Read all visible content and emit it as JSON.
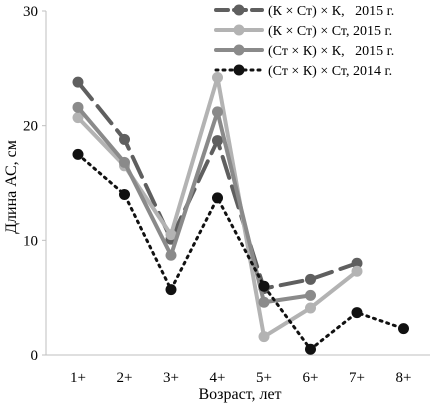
{
  "chart_data": {
    "type": "line",
    "xlabel": "Возраст, лет",
    "ylabel": "Длина АС, см",
    "categories": [
      "1+",
      "2+",
      "3+",
      "4+",
      "5+",
      "6+",
      "7+",
      "8+"
    ],
    "yticks": [
      "0",
      "10",
      "20",
      "30"
    ],
    "ylim": [
      0,
      30
    ],
    "grid": false,
    "legend_position": "top-right",
    "series": [
      {
        "name": "(К × Ст) × К,   2015 г.",
        "values": [
          23.8,
          18.8,
          10.1,
          18.7,
          5.8,
          6.6,
          8.0,
          null
        ],
        "color": "#5f5f5f",
        "dash": "long-dash"
      },
      {
        "name": "(К × Ст) × Ст, 2015 г.",
        "values": [
          20.7,
          16.5,
          10.5,
          24.2,
          1.6,
          4.1,
          7.3,
          null
        ],
        "color": "#b3b3b3",
        "dash": "solid"
      },
      {
        "name": "(Ст × К) × К,   2015 г.",
        "values": [
          21.6,
          16.8,
          8.7,
          21.2,
          4.6,
          5.2,
          null,
          null
        ],
        "color": "#8a8a8a",
        "dash": "solid"
      },
      {
        "name": "(Ст × К) × Ст, 2014 г.",
        "values": [
          17.5,
          14.0,
          5.7,
          13.7,
          6.0,
          0.5,
          3.7,
          2.3
        ],
        "color": "#111111",
        "dash": "dotted"
      }
    ]
  }
}
